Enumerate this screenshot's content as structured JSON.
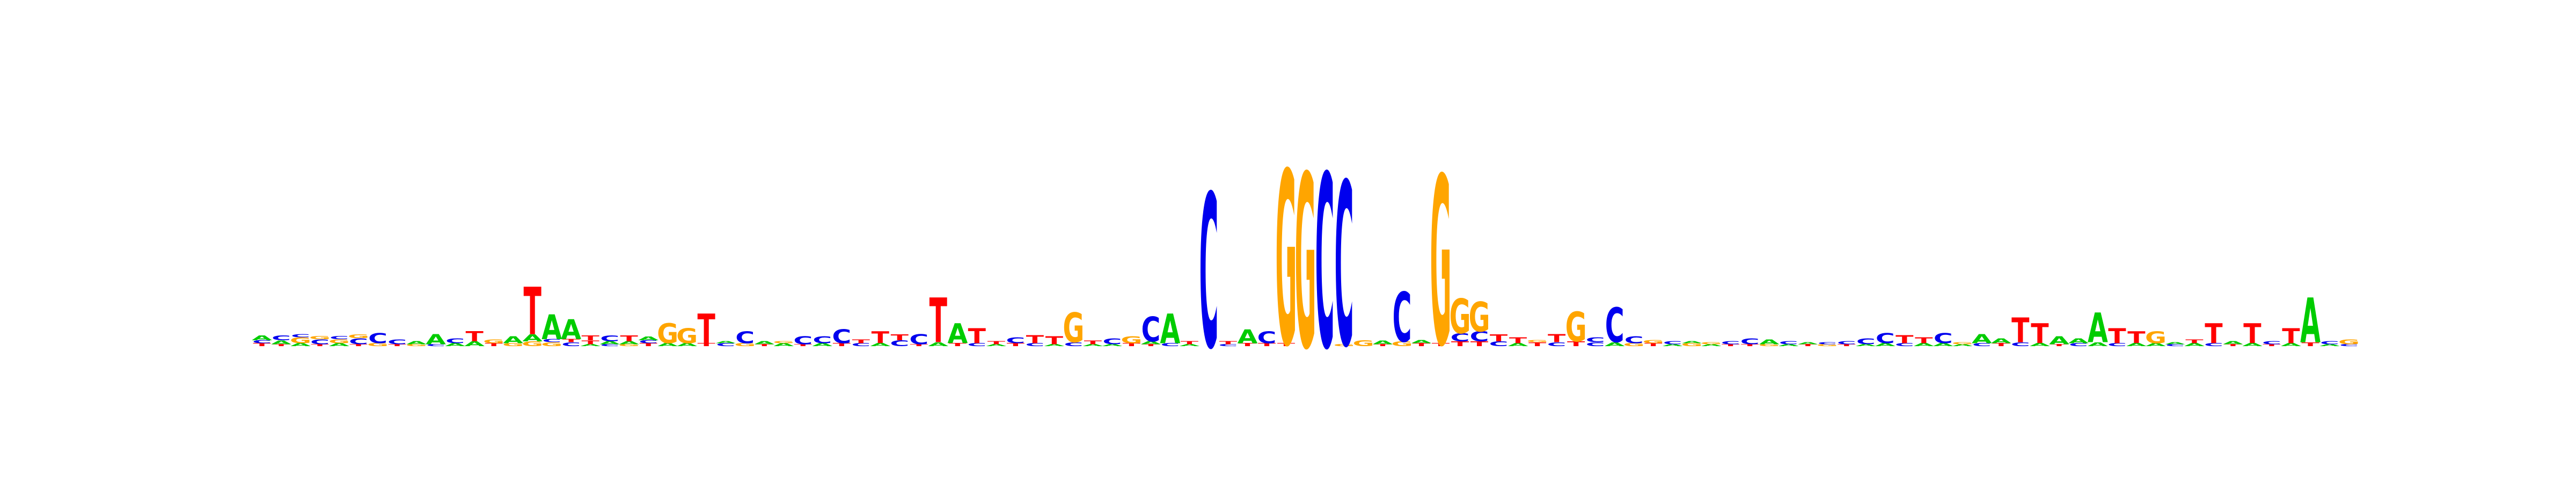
{
  "title": "",
  "colors": {
    "A": "#00cc00",
    "C": "#0000ee",
    "G": "#ffa500",
    "T": "#ff0000"
  },
  "chart_data": {
    "type": "sequence-logo",
    "alphabet": [
      "A",
      "C",
      "G",
      "T"
    ],
    "ylim": [
      0,
      2
    ],
    "positions": [
      [
        [
          "T",
          0.03
        ],
        [
          "C",
          0.03
        ],
        [
          "A",
          0.05
        ]
      ],
      [
        [
          "T",
          0.02
        ],
        [
          "A",
          0.04
        ],
        [
          "C",
          0.05
        ]
      ],
      [
        [
          "A",
          0.03
        ],
        [
          "G",
          0.06
        ],
        [
          "C",
          0.03
        ]
      ],
      [
        [
          "T",
          0.02
        ],
        [
          "C",
          0.05
        ],
        [
          "G",
          0.03
        ]
      ],
      [
        [
          "A",
          0.03
        ],
        [
          "G",
          0.04
        ],
        [
          "C",
          0.03
        ]
      ],
      [
        [
          "T",
          0.02
        ],
        [
          "C",
          0.06
        ],
        [
          "G",
          0.04
        ]
      ],
      [
        [
          "G",
          0.03
        ],
        [
          "C",
          0.1
        ]
      ],
      [
        [
          "T",
          0.02
        ],
        [
          "C",
          0.05
        ]
      ],
      [
        [
          "G",
          0.02
        ],
        [
          "A",
          0.03
        ]
      ],
      [
        [
          "C",
          0.02
        ],
        [
          "A",
          0.1
        ]
      ],
      [
        [
          "A",
          0.03
        ],
        [
          "C",
          0.05
        ]
      ],
      [
        [
          "A",
          0.05
        ],
        [
          "T",
          0.1
        ]
      ],
      [
        [
          "T",
          0.03
        ],
        [
          "G",
          0.04
        ]
      ],
      [
        [
          "G",
          0.03
        ],
        [
          "A",
          0.07
        ]
      ],
      [
        [
          "G",
          0.05
        ],
        [
          "A",
          0.07
        ],
        [
          "T",
          0.48
        ]
      ],
      [
        [
          "G",
          0.04
        ],
        [
          "C",
          0.03
        ],
        [
          "A",
          0.25
        ]
      ],
      [
        [
          "C",
          0.04
        ],
        [
          "T",
          0.03
        ],
        [
          "A",
          0.2
        ]
      ],
      [
        [
          "A",
          0.02
        ],
        [
          "T",
          0.04
        ],
        [
          "T",
          0.05
        ]
      ],
      [
        [
          "C",
          0.02
        ],
        [
          "A",
          0.03
        ],
        [
          "C",
          0.06
        ]
      ],
      [
        [
          "G",
          0.02
        ],
        [
          "A",
          0.03
        ],
        [
          "T",
          0.06
        ]
      ],
      [
        [
          "T",
          0.03
        ],
        [
          "C",
          0.03
        ],
        [
          "A",
          0.04
        ]
      ],
      [
        [
          "A",
          0.03
        ],
        [
          "G",
          0.2
        ]
      ],
      [
        [
          "A",
          0.03
        ],
        [
          "G",
          0.15
        ]
      ],
      [
        [
          "T",
          0.03
        ],
        [
          "T",
          0.3
        ]
      ],
      [
        [
          "C",
          0.03
        ],
        [
          "A",
          0.02
        ]
      ],
      [
        [
          "G",
          0.03
        ],
        [
          "C",
          0.12
        ]
      ],
      [
        [
          "T",
          0.02
        ],
        [
          "A",
          0.03
        ]
      ],
      [
        [
          "A",
          0.03
        ],
        [
          "G",
          0.02
        ]
      ],
      [
        [
          "T",
          0.02
        ],
        [
          "C",
          0.08
        ]
      ],
      [
        [
          "A",
          0.03
        ],
        [
          "C",
          0.07
        ]
      ],
      [
        [
          "T",
          0.03
        ],
        [
          "C",
          0.14
        ]
      ],
      [
        [
          "C",
          0.03
        ],
        [
          "T",
          0.04
        ]
      ],
      [
        [
          "A",
          0.03
        ],
        [
          "T",
          0.12
        ]
      ],
      [
        [
          "C",
          0.06
        ],
        [
          "T",
          0.06
        ]
      ],
      [
        [
          "T",
          0.02
        ],
        [
          "C",
          0.1
        ]
      ],
      [
        [
          "A",
          0.04
        ],
        [
          "T",
          0.45
        ]
      ],
      [
        [
          "T",
          0.03
        ],
        [
          "A",
          0.2
        ]
      ],
      [
        [
          "C",
          0.03
        ],
        [
          "T",
          0.15
        ]
      ],
      [
        [
          "A",
          0.02
        ],
        [
          "T",
          0.03
        ]
      ],
      [
        [
          "T",
          0.03
        ],
        [
          "C",
          0.06
        ]
      ],
      [
        [
          "C",
          0.03
        ],
        [
          "T",
          0.08
        ]
      ],
      [
        [
          "A",
          0.02
        ],
        [
          "T",
          0.08
        ]
      ],
      [
        [
          "C",
          0.04
        ],
        [
          "G",
          0.3
        ]
      ],
      [
        [
          "A",
          0.02
        ],
        [
          "T",
          0.04
        ]
      ],
      [
        [
          "A",
          0.02
        ],
        [
          "C",
          0.06
        ]
      ],
      [
        [
          "T",
          0.03
        ],
        [
          "G",
          0.07
        ]
      ],
      [
        [
          "T",
          0.02
        ],
        [
          "A",
          0.03
        ],
        [
          "C",
          0.25
        ]
      ],
      [
        [
          "C",
          0.03
        ],
        [
          "A",
          0.3
        ]
      ],
      [
        [
          "A",
          0.02
        ],
        [
          "T",
          0.03
        ]
      ],
      [
        [
          "C",
          1.55
        ]
      ],
      [
        [
          "C",
          0.02
        ],
        [
          "T",
          0.03
        ]
      ],
      [
        [
          "T",
          0.03
        ],
        [
          "A",
          0.14
        ]
      ],
      [
        [
          "T",
          0.03
        ],
        [
          "C",
          0.12
        ]
      ],
      [
        [
          "T",
          0.03
        ],
        [
          "G",
          1.75
        ]
      ],
      [
        [
          "G",
          1.75
        ]
      ],
      [
        [
          "C",
          1.75
        ]
      ],
      [
        [
          "G",
          0.02
        ],
        [
          "C",
          1.65
        ]
      ],
      [
        [
          "G",
          0.06
        ]
      ],
      [
        [
          "T",
          0.02
        ],
        [
          "A",
          0.04
        ]
      ],
      [
        [
          "G",
          0.05
        ],
        [
          "C",
          0.5
        ]
      ],
      [
        [
          "T",
          0.03
        ],
        [
          "A",
          0.03
        ]
      ],
      [
        [
          "T",
          0.03
        ],
        [
          "G",
          1.7
        ]
      ],
      [
        [
          "T",
          0.05
        ],
        [
          "C",
          0.08
        ],
        [
          "G",
          0.35
        ]
      ],
      [
        [
          "T",
          0.05
        ],
        [
          "C",
          0.1
        ],
        [
          "G",
          0.3
        ]
      ],
      [
        [
          "C",
          0.05
        ],
        [
          "T",
          0.07
        ]
      ],
      [
        [
          "A",
          0.03
        ],
        [
          "T",
          0.06
        ]
      ],
      [
        [
          "T",
          0.04
        ],
        [
          "G",
          0.02
        ]
      ],
      [
        [
          "C",
          0.04
        ],
        [
          "T",
          0.08
        ]
      ],
      [
        [
          "T",
          0.05
        ],
        [
          "G",
          0.3
        ]
      ],
      [
        [
          "C",
          0.04
        ],
        [
          "C",
          0.05
        ]
      ],
      [
        [
          "A",
          0.04
        ],
        [
          "C",
          0.35
        ]
      ],
      [
        [
          "G",
          0.03
        ],
        [
          "C",
          0.07
        ]
      ],
      [
        [
          "T",
          0.03
        ],
        [
          "G",
          0.03
        ]
      ],
      [
        [
          "A",
          0.02
        ],
        [
          "C",
          0.03
        ]
      ],
      [
        [
          "G",
          0.03
        ],
        [
          "A",
          0.02
        ]
      ],
      [
        [
          "A",
          0.02
        ],
        [
          "G",
          0.02
        ]
      ],
      [
        [
          "T",
          0.02
        ],
        [
          "C",
          0.03
        ]
      ],
      [
        [
          "T",
          0.02
        ],
        [
          "C",
          0.06
        ]
      ],
      [
        [
          "G",
          0.02
        ],
        [
          "A",
          0.05
        ]
      ],
      [
        [
          "A",
          0.02
        ],
        [
          "C",
          0.03
        ]
      ],
      [
        [
          "T",
          0.02
        ],
        [
          "A",
          0.02
        ]
      ],
      [
        [
          "G",
          0.02
        ],
        [
          "C",
          0.02
        ]
      ],
      [
        [
          "T",
          0.02
        ],
        [
          "C",
          0.03
        ]
      ],
      [
        [
          "A",
          0.02
        ],
        [
          "C",
          0.06
        ]
      ],
      [
        [
          "A",
          0.03
        ],
        [
          "C",
          0.1
        ]
      ],
      [
        [
          "C",
          0.03
        ],
        [
          "T",
          0.08
        ]
      ],
      [
        [
          "A",
          0.03
        ],
        [
          "T",
          0.06
        ]
      ],
      [
        [
          "A",
          0.03
        ],
        [
          "C",
          0.1
        ]
      ],
      [
        [
          "A",
          0.02
        ],
        [
          "G",
          0.02
        ]
      ],
      [
        [
          "C",
          0.03
        ],
        [
          "A",
          0.09
        ]
      ],
      [
        [
          "T",
          0.03
        ],
        [
          "A",
          0.05
        ]
      ],
      [
        [
          "C",
          0.04
        ],
        [
          "T",
          0.25
        ]
      ],
      [
        [
          "A",
          0.03
        ],
        [
          "T",
          0.2
        ]
      ],
      [
        [
          "T",
          0.02
        ],
        [
          "A",
          0.08
        ]
      ],
      [
        [
          "C",
          0.03
        ],
        [
          "A",
          0.05
        ]
      ],
      [
        [
          "A",
          0.04
        ],
        [
          "A",
          0.3
        ]
      ],
      [
        [
          "C",
          0.03
        ],
        [
          "T",
          0.15
        ]
      ],
      [
        [
          "A",
          0.03
        ],
        [
          "T",
          0.12
        ]
      ],
      [
        [
          "A",
          0.03
        ],
        [
          "G",
          0.12
        ]
      ],
      [
        [
          "C",
          0.02
        ],
        [
          "A",
          0.02
        ]
      ],
      [
        [
          "A",
          0.03
        ],
        [
          "T",
          0.04
        ]
      ],
      [
        [
          "C",
          0.03
        ],
        [
          "T",
          0.2
        ]
      ],
      [
        [
          "T",
          0.02
        ],
        [
          "A",
          0.03
        ]
      ],
      [
        [
          "A",
          0.03
        ],
        [
          "T",
          0.2
        ]
      ],
      [
        [
          "T",
          0.02
        ],
        [
          "C",
          0.03
        ]
      ],
      [
        [
          "A",
          0.03
        ],
        [
          "T",
          0.15
        ]
      ],
      [
        [
          "T",
          0.04
        ],
        [
          "A",
          0.45
        ]
      ],
      [
        [
          "A",
          0.02
        ],
        [
          "C",
          0.03
        ]
      ],
      [
        [
          "C",
          0.02
        ],
        [
          "G",
          0.05
        ]
      ]
    ]
  }
}
